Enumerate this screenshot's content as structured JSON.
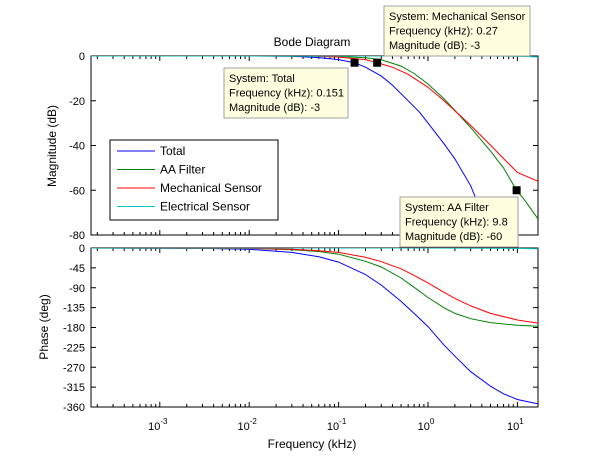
{
  "figure": {
    "title": "Bode Diagram"
  },
  "chart_data": [
    {
      "type": "line",
      "panel": "magnitude",
      "title": "Bode Diagram",
      "xlabel": "Frequency  (kHz)",
      "ylabel": "Magnitude (dB)",
      "xscale": "log",
      "xlim": [
        0.00017,
        17
      ],
      "ylim": [
        -80,
        0
      ],
      "yticks": [
        0,
        -20,
        -40,
        -60,
        -80
      ],
      "yticklabels": [
        "0",
        "-20",
        "-40",
        "-60",
        "-80"
      ],
      "grid": false,
      "legend": "mid-left",
      "series": [
        {
          "name": "Total",
          "color": "#0000ff",
          "x": [
            0.00017,
            0.001,
            0.01,
            0.03,
            0.06,
            0.1,
            0.151,
            0.2,
            0.3,
            0.4,
            0.6,
            0.8,
            1,
            1.5,
            2,
            3,
            5
          ],
          "y": [
            0,
            0,
            0,
            -0.1,
            -0.7,
            -1.6,
            -3,
            -5,
            -9,
            -13,
            -20,
            -25,
            -30,
            -39,
            -46,
            -58,
            -80
          ]
        },
        {
          "name": "AA Filter",
          "color": "#008000",
          "x": [
            0.00017,
            0.01,
            0.1,
            0.2,
            0.3,
            0.5,
            0.7,
            1,
            1.5,
            2,
            3,
            5,
            7,
            9.8,
            12,
            17
          ],
          "y": [
            0,
            0,
            -0.2,
            -0.8,
            -1.7,
            -4.5,
            -7.8,
            -12.5,
            -19,
            -24.3,
            -32,
            -42.5,
            -50,
            -60,
            -64.3,
            -72.8
          ]
        },
        {
          "name": "Mechanical Sensor",
          "color": "#ff0000",
          "x": [
            0.00017,
            0.01,
            0.05,
            0.1,
            0.2,
            0.27,
            0.4,
            0.6,
            1,
            1.5,
            2,
            3,
            5,
            7,
            10,
            17
          ],
          "y": [
            0,
            0,
            0,
            -0.5,
            -1.6,
            -3,
            -5,
            -8.2,
            -14,
            -19.9,
            -24.5,
            -31,
            -39.8,
            -45.8,
            -52,
            -56
          ]
        },
        {
          "name": "Electrical Sensor",
          "color": "#00bfbf",
          "x": [
            0.00017,
            1,
            5,
            10,
            17
          ],
          "y": [
            0,
            0,
            -0.05,
            -0.2,
            -0.4
          ]
        }
      ],
      "annotations": [
        {
          "lines": [
            "System: Total",
            "Frequency (kHz): 0.151",
            "Magnitude (dB): -3"
          ],
          "x": 0.151,
          "y": -3
        },
        {
          "lines": [
            "System: Mechanical Sensor",
            "Frequency (kHz): 0.27",
            "Magnitude (dB): -3"
          ],
          "x": 0.27,
          "y": -3
        },
        {
          "lines": [
            "System: AA Filter",
            "Frequency (kHz): 9.8",
            "Magnitude (dB): -60"
          ],
          "x": 9.8,
          "y": -60
        }
      ]
    },
    {
      "type": "line",
      "panel": "phase",
      "xlabel": "Frequency  (kHz)",
      "ylabel": "Phase (deg)",
      "xscale": "log",
      "xlim": [
        0.00017,
        17
      ],
      "xticks": [
        0.001,
        0.01,
        0.1,
        1,
        10
      ],
      "xticklabels": [
        {
          "base": "10",
          "exp": "-3"
        },
        {
          "base": "10",
          "exp": "-2"
        },
        {
          "base": "10",
          "exp": "-1"
        },
        {
          "base": "10",
          "exp": "0"
        },
        {
          "base": "10",
          "exp": "1"
        }
      ],
      "ylim": [
        -360,
        0
      ],
      "yticks": [
        0,
        -45,
        -90,
        -135,
        -180,
        -225,
        -270,
        -315,
        -360
      ],
      "yticklabels": [
        "0",
        "-45",
        "-90",
        "-135",
        "-180",
        "-225",
        "-270",
        "-315",
        "-360"
      ],
      "grid": false,
      "series": [
        {
          "name": "Total",
          "color": "#0000ff",
          "x": [
            0.00017,
            0.001,
            0.003,
            0.01,
            0.03,
            0.06,
            0.1,
            0.2,
            0.3,
            0.5,
            0.7,
            1,
            1.5,
            2,
            3,
            5,
            7,
            10,
            17
          ],
          "y": [
            0,
            -0.5,
            -1,
            -3,
            -10,
            -20,
            -32,
            -60,
            -84,
            -121,
            -148,
            -178,
            -219,
            -245,
            -280,
            -313,
            -330,
            -343,
            -353
          ]
        },
        {
          "name": "AA Filter",
          "color": "#008000",
          "x": [
            0.00017,
            0.01,
            0.03,
            0.06,
            0.1,
            0.2,
            0.3,
            0.5,
            0.7,
            1,
            1.5,
            2,
            3,
            5,
            10,
            17
          ],
          "y": [
            0,
            -1,
            -4,
            -8,
            -14,
            -30,
            -43,
            -68,
            -89,
            -112,
            -135,
            -148,
            -160,
            -169,
            -175,
            -177
          ]
        },
        {
          "name": "Mechanical Sensor",
          "color": "#ff0000",
          "x": [
            0.00017,
            0.01,
            0.03,
            0.06,
            0.1,
            0.2,
            0.3,
            0.5,
            0.7,
            1,
            1.5,
            2,
            3,
            5,
            10,
            17
          ],
          "y": [
            0,
            -1,
            -3,
            -6,
            -10,
            -21,
            -31,
            -47,
            -62,
            -79,
            -100,
            -114,
            -131,
            -148,
            -163,
            -170
          ]
        },
        {
          "name": "Electrical Sensor",
          "color": "#00bfbf",
          "x": [
            0.00017,
            1,
            5,
            10,
            17
          ],
          "y": [
            0,
            0,
            -0.5,
            -1,
            -1.5
          ]
        }
      ]
    }
  ]
}
